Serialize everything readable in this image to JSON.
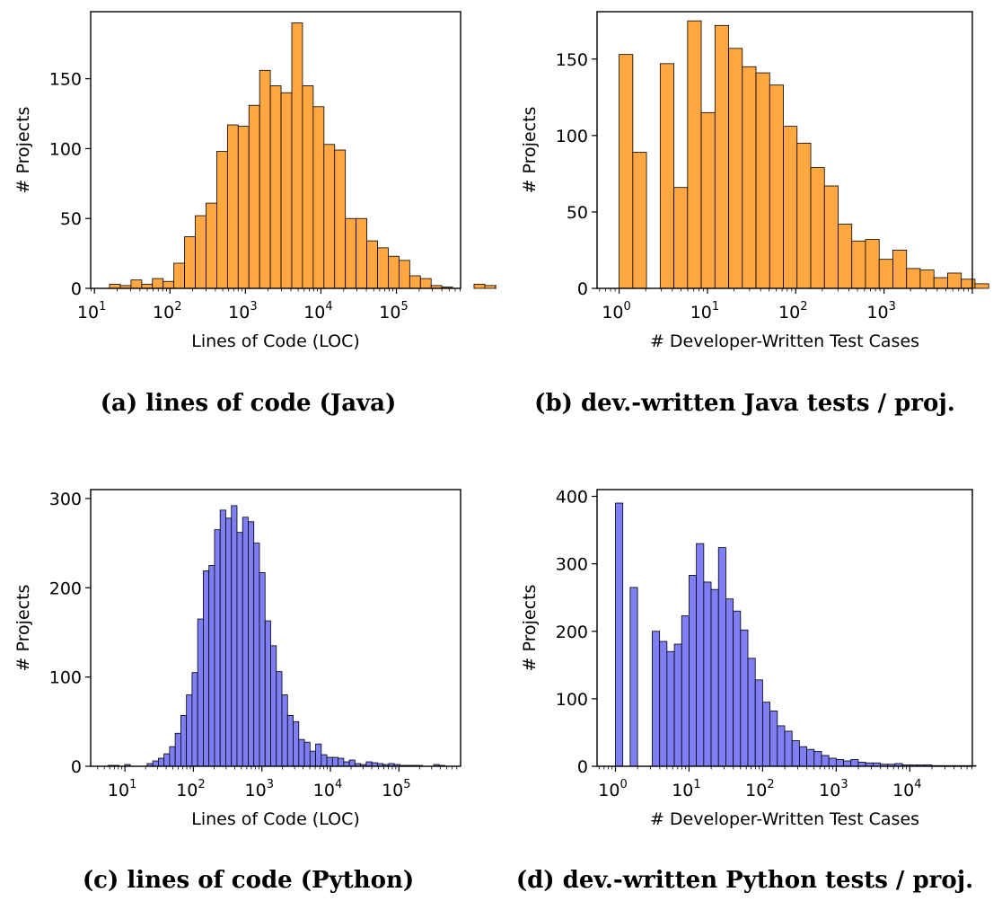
{
  "colors": {
    "java": "#ffa740",
    "python": "#7f7ff5",
    "edge": "#000000"
  },
  "chart_data": [
    {
      "id": "a",
      "type": "bar",
      "caption": "(a) lines of code (Java)",
      "xlabel": "Lines of Code (LOC)",
      "ylabel": "# Projects",
      "xscale": "log",
      "xlim_log": [
        0.95,
        5.85
      ],
      "ylim": [
        0,
        198
      ],
      "xticks_exp": [
        "1",
        "2",
        "3",
        "4",
        "5"
      ],
      "yticks": [
        0,
        50,
        100,
        150
      ],
      "bins": {
        "start_log": 1.2,
        "width_log": 0.142
      },
      "values": [
        3,
        2,
        6,
        3,
        7,
        5,
        18,
        37,
        52,
        61,
        98,
        117,
        116,
        131,
        156,
        145,
        140,
        190,
        145,
        130,
        103,
        99,
        50,
        50,
        34,
        29,
        23,
        20,
        9,
        7,
        2,
        1,
        0,
        0,
        3,
        2,
        2,
        0,
        3,
        2
      ],
      "color": "java"
    },
    {
      "id": "b",
      "type": "bar",
      "caption": "(b) dev.-written Java tests / proj.",
      "xlabel": "# Developer-Written Test Cases",
      "ylabel": "# Projects",
      "xscale": "log",
      "xlim_log": [
        -0.25,
        4.0
      ],
      "ylim": [
        0,
        181
      ],
      "xticks_exp": [
        "0",
        "1",
        "2",
        "3"
      ],
      "yticks": [
        0,
        50,
        100,
        150
      ],
      "bins": {
        "start_log": 0.0,
        "width_log": 0.155
      },
      "values": [
        153,
        89,
        0,
        147,
        66,
        175,
        115,
        172,
        157,
        145,
        141,
        133,
        106,
        95,
        79,
        67,
        42,
        31,
        32,
        19,
        25,
        13,
        12,
        7,
        10,
        6,
        3
      ],
      "color": "java"
    },
    {
      "id": "c",
      "type": "bar",
      "caption": "(c) lines of code (Python)",
      "xlabel": "Lines of Code (LOC)",
      "ylabel": "# Projects",
      "xscale": "log",
      "xlim_log": [
        0.5,
        5.9
      ],
      "ylim": [
        0,
        310
      ],
      "xticks_exp": [
        "1",
        "2",
        "3",
        "4",
        "5"
      ],
      "yticks": [
        0,
        100,
        200,
        300
      ],
      "bins": {
        "start_log": 0.75,
        "width_log": 0.082
      },
      "values": [
        1,
        1,
        0,
        2,
        0,
        0,
        0,
        3,
        6,
        9,
        14,
        22,
        37,
        57,
        80,
        105,
        165,
        219,
        225,
        265,
        287,
        278,
        292,
        262,
        279,
        274,
        250,
        217,
        163,
        135,
        106,
        80,
        57,
        50,
        30,
        27,
        17,
        25,
        13,
        10,
        10,
        9,
        5,
        7,
        3,
        2,
        5,
        4,
        3,
        2,
        3,
        2,
        1,
        1,
        1,
        1,
        0,
        0,
        2,
        1
      ],
      "color": "python"
    },
    {
      "id": "d",
      "type": "bar",
      "caption": "(d) dev.-written Python tests / proj.",
      "xlabel": "# Developer-Written Test Cases",
      "ylabel": "# Projects",
      "xscale": "log",
      "xlim_log": [
        -0.25,
        4.85
      ],
      "ylim": [
        0,
        410
      ],
      "xticks_exp": [
        "0",
        "1",
        "2",
        "3",
        "4"
      ],
      "yticks": [
        0,
        100,
        200,
        300,
        400
      ],
      "bins": {
        "start_log": 0.0,
        "width_log": 0.1
      },
      "values": [
        390,
        0,
        265,
        0,
        0,
        200,
        185,
        170,
        181,
        223,
        283,
        330,
        273,
        262,
        324,
        248,
        230,
        202,
        160,
        128,
        95,
        82,
        60,
        52,
        38,
        29,
        25,
        22,
        16,
        12,
        10,
        8,
        10,
        6,
        5,
        5,
        3,
        3,
        4,
        2,
        2,
        2,
        2,
        1,
        1,
        1,
        1,
        1,
        1
      ],
      "color": "python"
    }
  ]
}
